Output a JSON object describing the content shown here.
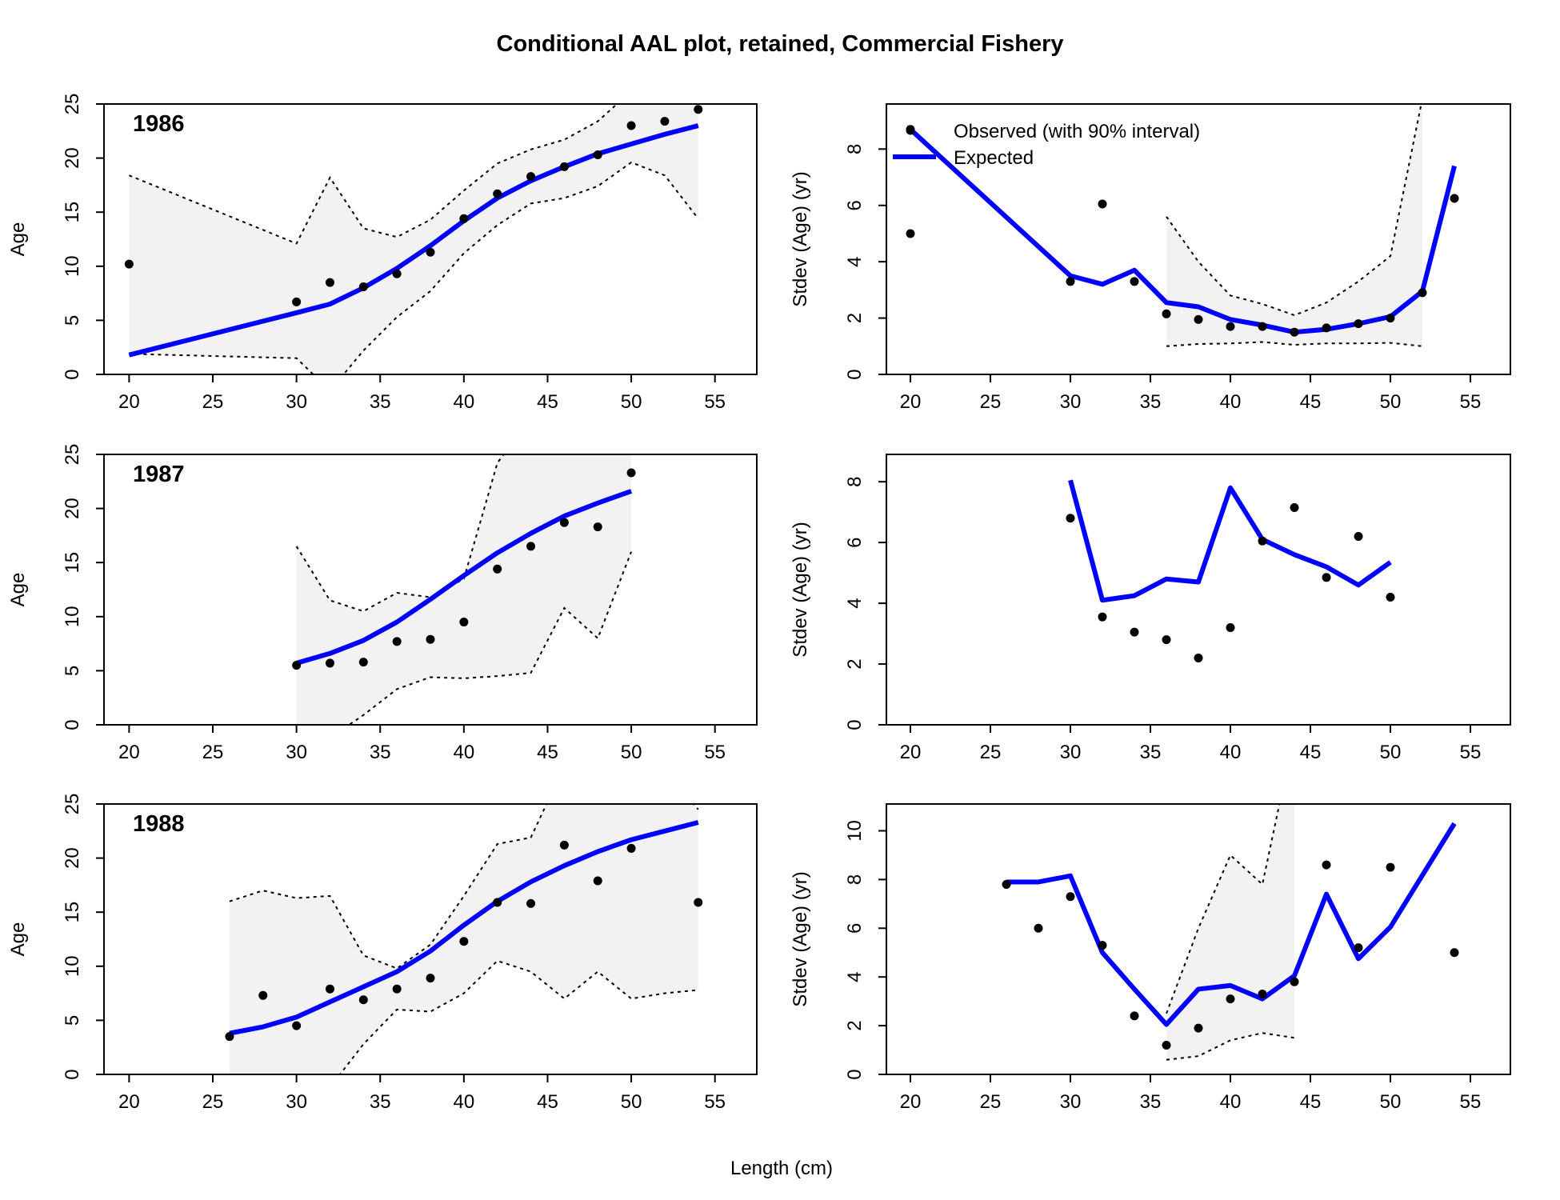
{
  "title": "Conditional AAL plot, retained, Commercial Fishery",
  "xlabel": "Length (cm)",
  "colors": {
    "expected": "#0000ff",
    "observed": "#000000",
    "interval_fill": "#f2f2f2",
    "interval_line": "#000000"
  },
  "legend": {
    "observed": "Observed (with 90% interval)",
    "expected": "Expected",
    "position": "top-left of first stdev panel"
  },
  "chart_data": [
    {
      "type": "line",
      "panel": "mean-1986",
      "year_label": "1986",
      "ylabel": "Age",
      "xlim": [
        18.5,
        57.5
      ],
      "ylim": [
        0,
        25
      ],
      "xticks": [
        20,
        25,
        30,
        35,
        40,
        45,
        50,
        55
      ],
      "yticks": [
        0,
        5,
        10,
        15,
        20,
        25
      ],
      "observed": {
        "x": [
          20,
          30,
          32,
          34,
          36,
          38,
          40,
          42,
          44,
          46,
          48,
          50,
          52,
          54
        ],
        "y": [
          10.2,
          6.7,
          8.5,
          8.1,
          9.3,
          11.3,
          14.4,
          16.7,
          18.3,
          19.2,
          20.3,
          23.0,
          23.4,
          24.5
        ]
      },
      "expected": {
        "x": [
          20,
          30,
          32,
          34,
          36,
          38,
          40,
          42,
          44,
          46,
          48,
          50,
          52,
          54
        ],
        "y": [
          1.8,
          5.7,
          6.5,
          8.0,
          9.8,
          11.9,
          14.2,
          16.3,
          17.9,
          19.2,
          20.4,
          21.3,
          22.2,
          23.0
        ]
      },
      "interval": {
        "x": [
          20,
          30,
          32,
          34,
          36,
          38,
          40,
          42,
          44,
          46,
          48,
          50,
          52,
          54
        ],
        "lower": [
          1.9,
          1.5,
          -1.5,
          2.2,
          5.3,
          7.7,
          11.2,
          13.8,
          15.8,
          16.3,
          17.4,
          19.6,
          18.4,
          14.4
        ],
        "upper": [
          18.4,
          12.1,
          18.2,
          13.5,
          12.7,
          14.3,
          17.0,
          19.5,
          20.8,
          21.7,
          23.4,
          26.2,
          28.5,
          29.0
        ]
      }
    },
    {
      "type": "line",
      "panel": "stdev-1986",
      "ylabel": "Stdev (Age) (yr)",
      "xlim": [
        18.5,
        57.5
      ],
      "ylim": [
        0,
        9.6
      ],
      "xticks": [
        20,
        25,
        30,
        35,
        40,
        45,
        50,
        55
      ],
      "yticks": [
        0,
        2,
        4,
        6,
        8
      ],
      "observed": {
        "x": [
          20,
          20,
          30,
          32,
          34,
          36,
          38,
          40,
          42,
          44,
          46,
          48,
          50,
          52,
          54
        ],
        "y": [
          8.7,
          5.0,
          3.3,
          6.05,
          3.3,
          2.15,
          1.95,
          1.7,
          1.7,
          1.5,
          1.65,
          1.8,
          2.0,
          2.9,
          6.25
        ]
      },
      "expected": {
        "x": [
          20,
          30,
          32,
          34,
          36,
          38,
          40,
          42,
          44,
          46,
          48,
          50,
          52,
          54
        ],
        "y": [
          8.7,
          3.5,
          3.2,
          3.7,
          2.55,
          2.4,
          1.95,
          1.75,
          1.5,
          1.6,
          1.8,
          2.05,
          2.95,
          7.4
        ]
      },
      "interval": {
        "x": [
          36,
          38,
          40,
          42,
          44,
          46,
          48,
          50,
          52
        ],
        "lower": [
          1.0,
          1.08,
          1.1,
          1.15,
          1.05,
          1.1,
          1.1,
          1.12,
          1.0
        ],
        "upper": [
          5.6,
          4.0,
          2.8,
          2.5,
          2.1,
          2.55,
          3.3,
          4.2,
          9.8
        ]
      }
    },
    {
      "type": "line",
      "panel": "mean-1987",
      "year_label": "1987",
      "ylabel": "Age",
      "xlim": [
        18.5,
        57.5
      ],
      "ylim": [
        0,
        25
      ],
      "xticks": [
        20,
        25,
        30,
        35,
        40,
        45,
        50,
        55
      ],
      "yticks": [
        0,
        5,
        10,
        15,
        20,
        25
      ],
      "observed": {
        "x": [
          30,
          32,
          34,
          36,
          38,
          40,
          42,
          44,
          46,
          48,
          50
        ],
        "y": [
          5.5,
          5.7,
          5.8,
          7.7,
          7.9,
          9.5,
          14.4,
          16.5,
          18.7,
          18.3,
          23.3
        ]
      },
      "expected": {
        "x": [
          30,
          32,
          34,
          36,
          38,
          40,
          42,
          44,
          46,
          48,
          50
        ],
        "y": [
          5.7,
          6.6,
          7.8,
          9.5,
          11.6,
          13.8,
          15.9,
          17.7,
          19.3,
          20.5,
          21.6
        ]
      },
      "interval": {
        "x": [
          30,
          32,
          34,
          36,
          38,
          40,
          42,
          44,
          46,
          48,
          50
        ],
        "lower": [
          -1.0,
          -1.2,
          0.9,
          3.3,
          4.4,
          4.3,
          4.5,
          4.8,
          10.8,
          8.0,
          16.0
        ],
        "upper": [
          16.5,
          11.5,
          10.5,
          12.2,
          11.8,
          13.5,
          24.2,
          28.5,
          26.7,
          28.0,
          28.5
        ]
      }
    },
    {
      "type": "line",
      "panel": "stdev-1987",
      "ylabel": "Stdev (Age) (yr)",
      "xlim": [
        18.5,
        57.5
      ],
      "ylim": [
        0,
        8.9
      ],
      "xticks": [
        20,
        25,
        30,
        35,
        40,
        45,
        50,
        55
      ],
      "yticks": [
        0,
        2,
        4,
        6,
        8
      ],
      "observed": {
        "x": [
          30,
          32,
          34,
          36,
          38,
          40,
          42,
          44,
          46,
          48,
          50
        ],
        "y": [
          6.8,
          3.55,
          3.05,
          2.8,
          2.2,
          3.2,
          6.05,
          7.15,
          4.85,
          6.2,
          4.2
        ]
      },
      "expected": {
        "x": [
          30,
          32,
          34,
          36,
          38,
          40,
          42,
          44,
          46,
          48,
          50
        ],
        "y": [
          8.05,
          4.1,
          4.25,
          4.8,
          4.7,
          7.8,
          6.1,
          5.6,
          5.2,
          4.6,
          5.35
        ]
      }
    },
    {
      "type": "line",
      "panel": "mean-1988",
      "year_label": "1988",
      "ylabel": "Age",
      "xlim": [
        18.5,
        57.5
      ],
      "ylim": [
        0,
        25
      ],
      "xticks": [
        20,
        25,
        30,
        35,
        40,
        45,
        50,
        55
      ],
      "yticks": [
        0,
        5,
        10,
        15,
        20,
        25
      ],
      "observed": {
        "x": [
          26,
          28,
          30,
          32,
          34,
          36,
          38,
          40,
          42,
          44,
          46,
          48,
          50,
          54
        ],
        "y": [
          3.5,
          7.3,
          4.5,
          7.9,
          6.9,
          7.9,
          8.9,
          12.3,
          15.9,
          15.8,
          21.2,
          17.9,
          20.9,
          15.9
        ]
      },
      "expected": {
        "x": [
          26,
          28,
          30,
          32,
          34,
          36,
          38,
          40,
          42,
          44,
          46,
          48,
          50,
          52,
          54
        ],
        "y": [
          3.8,
          4.4,
          5.3,
          6.7,
          8.1,
          9.5,
          11.4,
          13.8,
          16.0,
          17.8,
          19.3,
          20.6,
          21.7,
          22.5,
          23.3
        ]
      },
      "interval": {
        "x": [
          26,
          28,
          30,
          32,
          34,
          36,
          38,
          40,
          42,
          44,
          46,
          48,
          50,
          52,
          54
        ],
        "lower": [
          -1.0,
          -1.0,
          -1.0,
          -1.2,
          2.8,
          6.0,
          5.8,
          7.5,
          10.5,
          9.5,
          7.0,
          9.5,
          7.0,
          7.5,
          7.8
        ],
        "upper": [
          16.0,
          17.0,
          16.3,
          16.5,
          11.0,
          9.8,
          12.0,
          16.5,
          21.3,
          21.9,
          28.5,
          26.0,
          31.0,
          28.0,
          24.5
        ]
      }
    },
    {
      "type": "line",
      "panel": "stdev-1988",
      "ylabel": "Stdev (Age) (yr)",
      "xlim": [
        18.5,
        57.5
      ],
      "ylim": [
        0,
        11.1
      ],
      "xticks": [
        20,
        25,
        30,
        35,
        40,
        45,
        50,
        55
      ],
      "yticks": [
        0,
        2,
        4,
        6,
        8,
        10
      ],
      "observed": {
        "x": [
          26,
          28,
          30,
          32,
          34,
          36,
          38,
          40,
          42,
          44,
          46,
          48,
          50,
          54
        ],
        "y": [
          7.8,
          6.0,
          7.3,
          5.3,
          2.4,
          1.2,
          1.9,
          3.1,
          3.3,
          3.8,
          8.6,
          5.2,
          8.5,
          5.0
        ]
      },
      "expected": {
        "x": [
          26,
          28,
          30,
          32,
          34,
          36,
          38,
          40,
          42,
          44,
          46,
          48,
          50,
          54
        ],
        "y": [
          7.9,
          7.9,
          8.15,
          5.0,
          3.5,
          2.05,
          3.5,
          3.65,
          3.1,
          4.05,
          7.4,
          4.75,
          6.05,
          10.3
        ]
      },
      "interval": {
        "x": [
          36,
          38,
          40,
          42,
          44
        ],
        "lower": [
          0.6,
          0.75,
          1.4,
          1.7,
          1.5
        ],
        "upper": [
          2.5,
          6.0,
          9.0,
          7.8,
          14.0
        ]
      }
    }
  ]
}
